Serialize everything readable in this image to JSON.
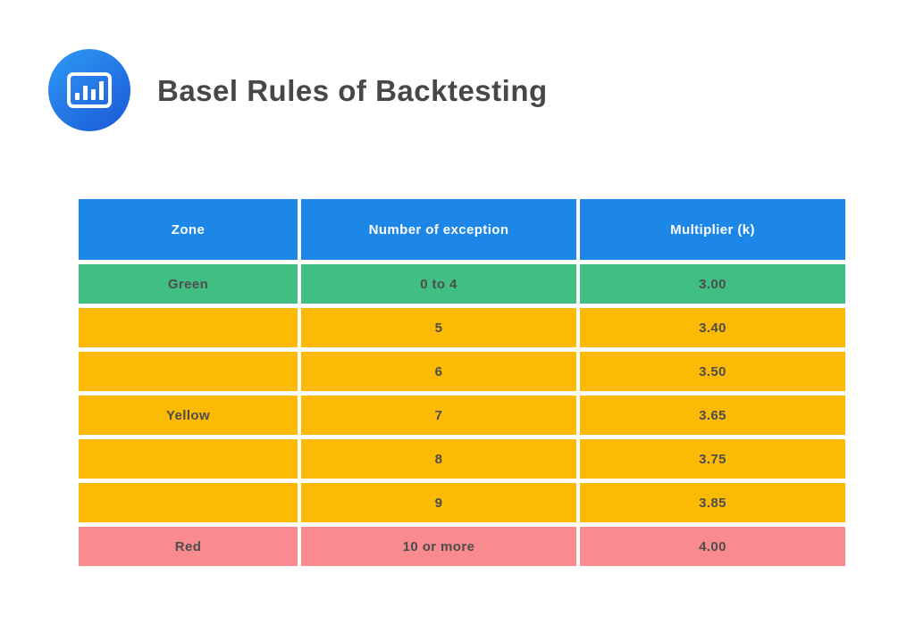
{
  "header": {
    "title": "Basel Rules of Backtesting",
    "icon": "bar-chart-icon"
  },
  "chart_data": {
    "type": "table",
    "title": "Basel Rules of Backtesting",
    "columns": [
      "Zone",
      "Number of exception",
      "Multiplier (k)"
    ],
    "rows": [
      {
        "zone": "Green",
        "exceptions": "0 to 4",
        "multiplier": "3.00",
        "zone_color": "green"
      },
      {
        "zone": "",
        "exceptions": "5",
        "multiplier": "3.40",
        "zone_color": "yellow"
      },
      {
        "zone": "",
        "exceptions": "6",
        "multiplier": "3.50",
        "zone_color": "yellow"
      },
      {
        "zone": "Yellow",
        "exceptions": "7",
        "multiplier": "3.65",
        "zone_color": "yellow"
      },
      {
        "zone": "",
        "exceptions": "8",
        "multiplier": "3.75",
        "zone_color": "yellow"
      },
      {
        "zone": "",
        "exceptions": "9",
        "multiplier": "3.85",
        "zone_color": "yellow"
      },
      {
        "zone": "Red",
        "exceptions": "10 or more",
        "multiplier": "4.00",
        "zone_color": "red"
      }
    ]
  },
  "colors": {
    "header_bg": "#1D87E8",
    "header_text": "#FFFFFF",
    "green": "#41BE81",
    "yellow": "#FCBA05",
    "red": "#F98B90",
    "cell_text": "#4D4D4D",
    "title_text": "#474747",
    "icon_gradient_start": "#2E9BF5",
    "icon_gradient_end": "#1A57D6"
  }
}
